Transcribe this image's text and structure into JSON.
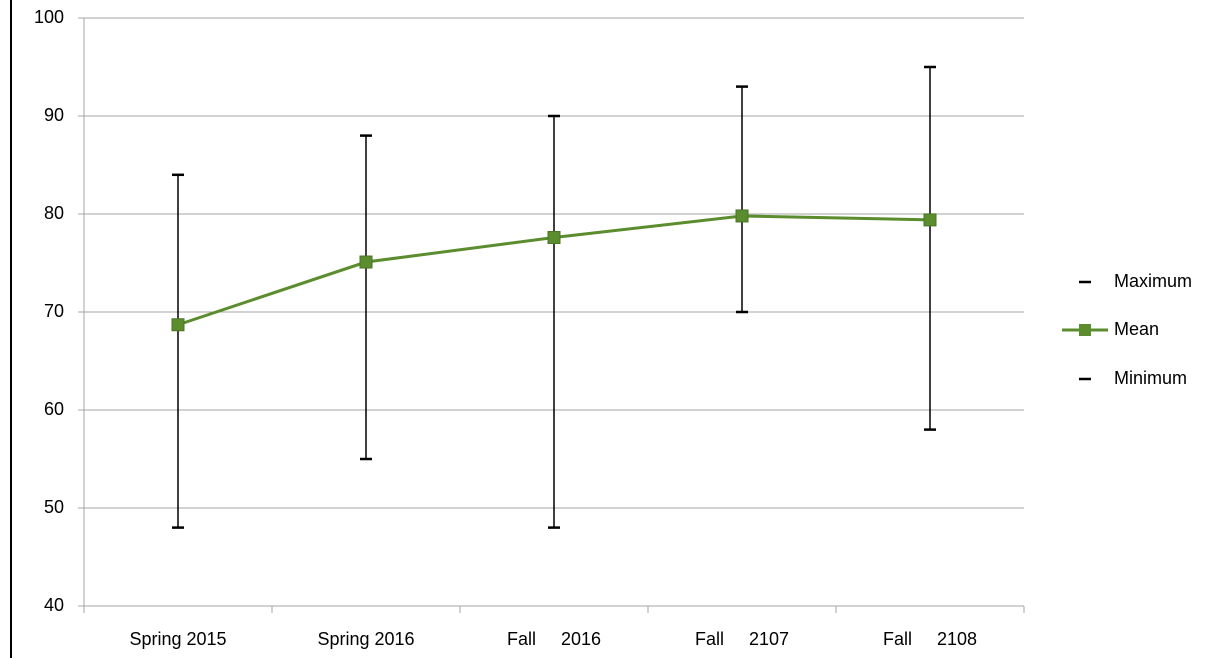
{
  "chart_data": {
    "type": "line",
    "categories": [
      "Spring 2015",
      "Spring 2016",
      "Fall     2016",
      "Fall     2107",
      "Fall     2108"
    ],
    "series": [
      {
        "name": "Maximum",
        "color": "#000000",
        "values": [
          84,
          88,
          90,
          93,
          95
        ]
      },
      {
        "name": "Mean",
        "color": "#5b8c2e",
        "values": [
          68.7,
          75.1,
          77.6,
          79.8,
          79.4
        ]
      },
      {
        "name": "Minimum",
        "color": "#000000",
        "values": [
          48,
          55,
          48,
          70,
          58
        ]
      }
    ],
    "ylim": [
      40,
      100
    ],
    "yticks": [
      40,
      50,
      60,
      70,
      80,
      90,
      100
    ],
    "grid": true,
    "legend": "right"
  }
}
